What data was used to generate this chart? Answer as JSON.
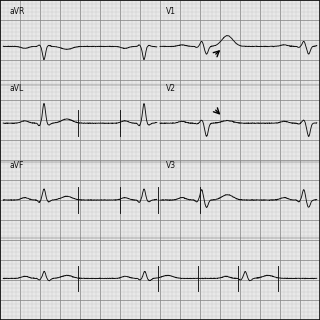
{
  "bg_color": "#e8e8e8",
  "grid_major_color": "#888888",
  "grid_minor_color": "#bbbbbb",
  "ecg_color": "#111111",
  "label_color": "#111111",
  "border_color": "#111111",
  "labels_row1": [
    "aVR",
    "V1"
  ],
  "labels_row2": [
    "aVL",
    "V2"
  ],
  "labels_row3": [
    "aVF",
    "V3"
  ],
  "figsize": [
    3.2,
    3.2
  ],
  "dpi": 100,
  "hr": 72,
  "noise": 0.005
}
